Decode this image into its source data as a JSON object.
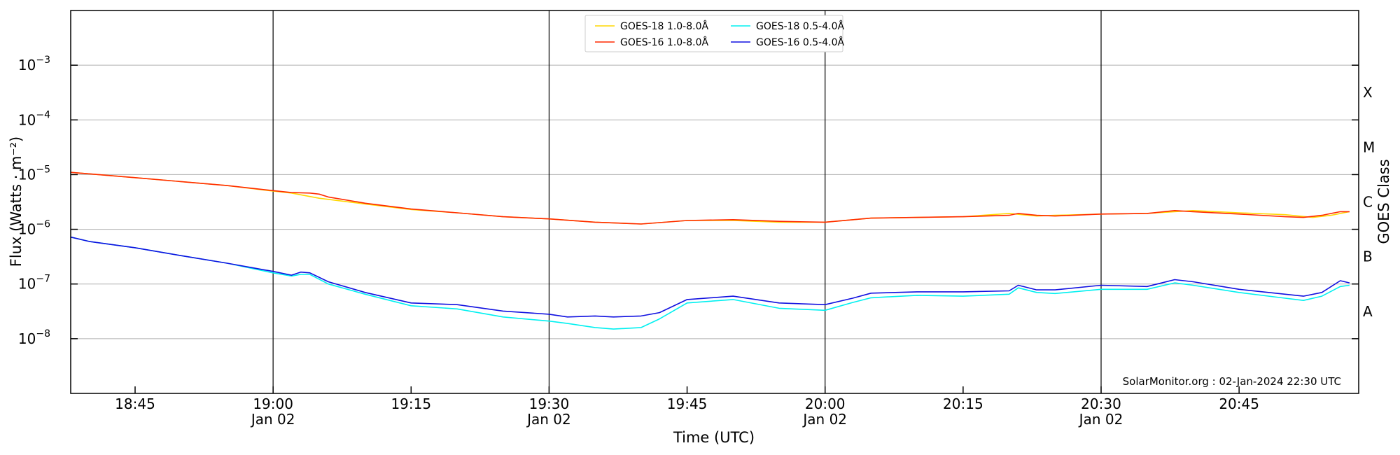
{
  "chart_data": {
    "type": "line",
    "xlabel": "Time (UTC)",
    "ylabel": "Flux (Watts · m⁻²)",
    "y2label": "GOES Class",
    "credit": "SolarMonitor.org : 02-Jan-2024 22:30 UTC",
    "x_unit": "minutes since 00:00 UTC on 02-Jan-2024",
    "xlim": [
      1118,
      1258
    ],
    "yscale": "log",
    "ylim_log10": [
      -9,
      -2
    ],
    "y_ticks": [
      {
        "exp": -3,
        "label": "10",
        "sup": "−3"
      },
      {
        "exp": -4,
        "label": "10",
        "sup": "−4"
      },
      {
        "exp": -5,
        "label": "10",
        "sup": "−5"
      },
      {
        "exp": -6,
        "label": "10",
        "sup": "−6"
      },
      {
        "exp": -7,
        "label": "10",
        "sup": "−7"
      },
      {
        "exp": -8,
        "label": "10",
        "sup": "−8"
      }
    ],
    "x_ticks": [
      {
        "t": 1125,
        "label": "18:45",
        "sub": ""
      },
      {
        "t": 1140,
        "label": "19:00",
        "sub": "Jan 02"
      },
      {
        "t": 1155,
        "label": "19:15",
        "sub": ""
      },
      {
        "t": 1170,
        "label": "19:30",
        "sub": "Jan 02"
      },
      {
        "t": 1185,
        "label": "19:45",
        "sub": ""
      },
      {
        "t": 1200,
        "label": "20:00",
        "sub": "Jan 02"
      },
      {
        "t": 1215,
        "label": "20:15",
        "sub": ""
      },
      {
        "t": 1230,
        "label": "20:30",
        "sub": "Jan 02"
      },
      {
        "t": 1245,
        "label": "20:45",
        "sub": ""
      }
    ],
    "vlines_t": [
      1140,
      1170,
      1200,
      1230
    ],
    "goes_classes": [
      {
        "label": "X",
        "exp": -3.5
      },
      {
        "label": "M",
        "exp": -4.5
      },
      {
        "label": "C",
        "exp": -5.5
      },
      {
        "label": "B",
        "exp": -6.5
      },
      {
        "label": "A",
        "exp": -7.5
      }
    ],
    "legend_position": "upper-center",
    "series": [
      {
        "name": "GOES-18 1.0-8.0Å",
        "color": "#ffd700",
        "t": [
          1118,
          1125,
          1135,
          1140,
          1142,
          1145,
          1150,
          1155,
          1160,
          1165,
          1170,
          1175,
          1180,
          1185,
          1190,
          1195,
          1200,
          1205,
          1210,
          1215,
          1220,
          1223,
          1225,
          1230,
          1235,
          1240,
          1245,
          1250,
          1253,
          1255,
          1257
        ],
        "flux": [
          1.1e-05,
          8.8e-06,
          6.3e-06,
          5e-06,
          4.6e-06,
          3.7e-06,
          2.9e-06,
          2.3e-06,
          2e-06,
          1.7e-06,
          1.55e-06,
          1.35e-06,
          1.25e-06,
          1.45e-06,
          1.45e-06,
          1.35e-06,
          1.35e-06,
          1.6e-06,
          1.65e-06,
          1.7e-06,
          1.95e-06,
          1.75e-06,
          1.8e-06,
          1.9e-06,
          1.95e-06,
          2.2e-06,
          2e-06,
          1.85e-06,
          1.65e-06,
          1.8e-06,
          2.1e-06
        ]
      },
      {
        "name": "GOES-16 1.0-8.0Å",
        "color": "#ff2a00",
        "t": [
          1118,
          1125,
          1135,
          1140,
          1142,
          1144,
          1145,
          1146,
          1150,
          1155,
          1160,
          1165,
          1170,
          1175,
          1180,
          1185,
          1190,
          1195,
          1200,
          1205,
          1210,
          1215,
          1220,
          1221,
          1223,
          1225,
          1230,
          1235,
          1238,
          1240,
          1245,
          1250,
          1252,
          1254,
          1256,
          1257
        ],
        "flux": [
          1.1e-05,
          8.8e-06,
          6.3e-06,
          5.1e-06,
          4.7e-06,
          4.6e-06,
          4.4e-06,
          3.9e-06,
          3e-06,
          2.35e-06,
          2e-06,
          1.7e-06,
          1.55e-06,
          1.35e-06,
          1.25e-06,
          1.45e-06,
          1.5e-06,
          1.4e-06,
          1.35e-06,
          1.6e-06,
          1.65e-06,
          1.7e-06,
          1.8e-06,
          1.95e-06,
          1.8e-06,
          1.75e-06,
          1.9e-06,
          1.95e-06,
          2.2e-06,
          2.1e-06,
          1.9e-06,
          1.7e-06,
          1.65e-06,
          1.8e-06,
          2.1e-06,
          2.1e-06
        ]
      },
      {
        "name": "GOES-18 0.5-4.0Å",
        "color": "#00f0f0",
        "t": [
          1118,
          1120,
          1125,
          1130,
          1135,
          1140,
          1142,
          1143,
          1144,
          1146,
          1150,
          1155,
          1160,
          1165,
          1170,
          1172,
          1175,
          1177,
          1180,
          1182,
          1185,
          1190,
          1195,
          1200,
          1203,
          1205,
          1210,
          1215,
          1220,
          1221,
          1223,
          1225,
          1230,
          1235,
          1238,
          1240,
          1245,
          1250,
          1252,
          1254,
          1256,
          1257
        ],
        "flux": [
          7.2e-07,
          6e-07,
          4.6e-07,
          3.3e-07,
          2.4e-07,
          1.6e-07,
          1.4e-07,
          1.5e-07,
          1.5e-07,
          1e-07,
          6.5e-08,
          4e-08,
          3.5e-08,
          2.5e-08,
          2.1e-08,
          1.9e-08,
          1.6e-08,
          1.5e-08,
          1.6e-08,
          2.3e-08,
          4.5e-08,
          5.2e-08,
          3.6e-08,
          3.3e-08,
          4.6e-08,
          5.6e-08,
          6.2e-08,
          6e-08,
          6.5e-08,
          8.5e-08,
          7e-08,
          6.7e-08,
          8e-08,
          8e-08,
          1.05e-07,
          9.5e-08,
          7e-08,
          5.5e-08,
          5e-08,
          6e-08,
          9e-08,
          9.5e-08
        ]
      },
      {
        "name": "GOES-16 0.5-4.0Å",
        "color": "#1010e0",
        "t": [
          1118,
          1120,
          1125,
          1130,
          1135,
          1140,
          1142,
          1143,
          1144,
          1146,
          1150,
          1155,
          1160,
          1165,
          1170,
          1172,
          1175,
          1177,
          1180,
          1182,
          1185,
          1190,
          1195,
          1200,
          1203,
          1205,
          1210,
          1215,
          1220,
          1221,
          1223,
          1225,
          1230,
          1235,
          1238,
          1240,
          1245,
          1250,
          1252,
          1254,
          1256,
          1257
        ],
        "flux": [
          7.2e-07,
          6e-07,
          4.6e-07,
          3.3e-07,
          2.4e-07,
          1.7e-07,
          1.45e-07,
          1.65e-07,
          1.6e-07,
          1.1e-07,
          7e-08,
          4.5e-08,
          4.2e-08,
          3.2e-08,
          2.8e-08,
          2.5e-08,
          2.6e-08,
          2.5e-08,
          2.6e-08,
          3e-08,
          5.2e-08,
          6e-08,
          4.5e-08,
          4.2e-08,
          5.5e-08,
          6.8e-08,
          7.2e-08,
          7.2e-08,
          7.5e-08,
          9.5e-08,
          7.8e-08,
          7.8e-08,
          9.5e-08,
          9e-08,
          1.2e-07,
          1.1e-07,
          8e-08,
          6.5e-08,
          6e-08,
          7e-08,
          1.15e-07,
          1.05e-07
        ]
      }
    ]
  }
}
